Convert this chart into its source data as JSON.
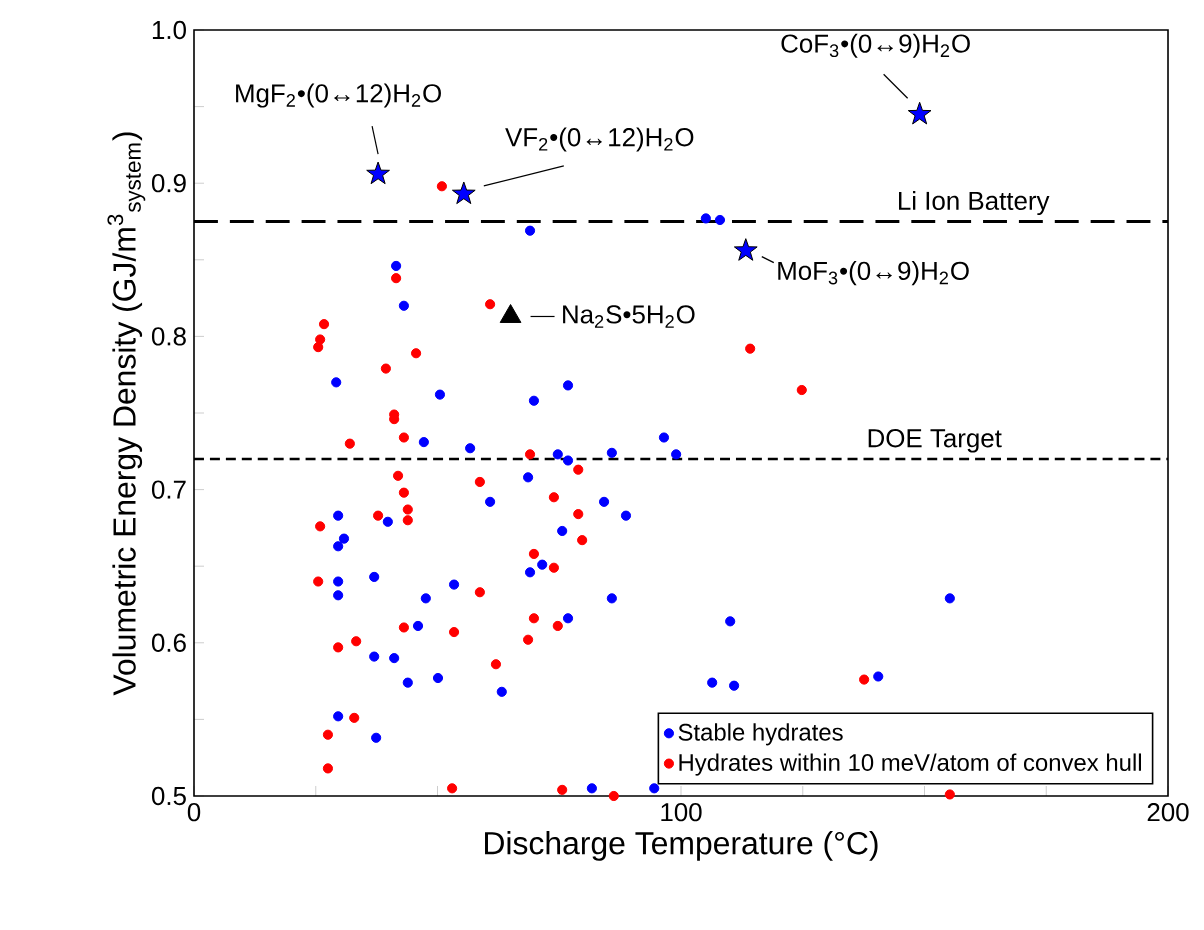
{
  "chart_data": {
    "type": "scatter",
    "xlabel": "Discharge Temperature (°C)",
    "ylabel": "Volumetric Energy Density (GJ/m$^{3}$$_{system}$)",
    "xlim": [
      0,
      200
    ],
    "xticks": [
      0,
      {
        "value": 25,
        "label": null
      },
      {
        "value": 50,
        "label": null
      },
      {
        "value": 75,
        "label": null
      },
      100,
      {
        "value": 125,
        "label": null
      },
      {
        "value": 150,
        "label": null
      },
      {
        "value": 175,
        "label": null
      },
      200
    ],
    "ylim": [
      0.5,
      1.0
    ],
    "yticks": [
      0.5,
      {
        "value": 0.55,
        "label": null
      },
      0.6,
      {
        "value": 0.65,
        "label": null
      },
      0.7,
      {
        "value": 0.75,
        "label": null
      },
      0.8,
      {
        "value": 0.85,
        "label": null
      },
      0.9,
      {
        "value": 0.95,
        "label": null
      },
      {
        "value": 1.0,
        "label": "1.0"
      }
    ],
    "legend": "bottom right",
    "series": [
      {
        "name": "Stable hydrates",
        "color": "#0000ff",
        "marker": "circle",
        "x": [
          69.0,
          41.5,
          43.1,
          29.2,
          50.5,
          69.8,
          76.8,
          47.2,
          56.7,
          96.5,
          99.0,
          74.7,
          76.8,
          68.6,
          84.2,
          60.8,
          29.6,
          39.8,
          88.7,
          30.8,
          29.6,
          75.6,
          71.5,
          69.0,
          29.6,
          29.6,
          37.0,
          53.4,
          47.6,
          85.8,
          76.8,
          46.0,
          37.0,
          41.1,
          43.9,
          50.1,
          63.2,
          29.6,
          37.4,
          81.7,
          94.5,
          105.1,
          108.0,
          85.8,
          110.1,
          155.2,
          106.4,
          110.9,
          140.5
        ],
        "values": [
          0.869,
          0.846,
          0.82,
          0.77,
          0.762,
          0.758,
          0.768,
          0.731,
          0.727,
          0.734,
          0.723,
          0.723,
          0.719,
          0.708,
          0.692,
          0.692,
          0.683,
          0.679,
          0.683,
          0.668,
          0.663,
          0.673,
          0.651,
          0.646,
          0.64,
          0.631,
          0.643,
          0.638,
          0.629,
          0.629,
          0.616,
          0.611,
          0.591,
          0.59,
          0.574,
          0.577,
          0.568,
          0.552,
          0.538,
          0.505,
          0.505,
          0.877,
          0.876,
          0.724,
          0.614,
          0.629,
          0.574,
          0.572,
          0.578
        ]
      },
      {
        "name": "Hydrates within 10 meV/atom of convex hull",
        "color": "#ff0000",
        "marker": "circle",
        "x": [
          50.9,
          41.5,
          60.8,
          26.7,
          25.9,
          25.5,
          45.6,
          39.4,
          41.1,
          41.1,
          43.1,
          32.0,
          69.0,
          78.9,
          41.9,
          43.1,
          58.7,
          73.9,
          43.9,
          43.9,
          37.8,
          25.9,
          78.9,
          79.7,
          69.8,
          73.9,
          25.5,
          58.7,
          43.1,
          53.4,
          69.8,
          74.7,
          68.6,
          33.3,
          29.6,
          62.0,
          32.9,
          27.5,
          27.5,
          53.0,
          75.6,
          86.2,
          114.2,
          124.8,
          137.6,
          155.2
        ],
        "values": [
          0.898,
          0.838,
          0.821,
          0.808,
          0.798,
          0.793,
          0.789,
          0.779,
          0.749,
          0.746,
          0.734,
          0.73,
          0.723,
          0.713,
          0.709,
          0.698,
          0.705,
          0.695,
          0.687,
          0.68,
          0.683,
          0.676,
          0.684,
          0.667,
          0.658,
          0.649,
          0.64,
          0.633,
          0.61,
          0.607,
          0.616,
          0.611,
          0.602,
          0.601,
          0.597,
          0.586,
          0.551,
          0.54,
          0.518,
          0.505,
          0.504,
          0.5,
          0.792,
          0.765,
          0.576,
          0.501
        ]
      },
      {
        "color": "#0000ff",
        "marker": "star",
        "x": [
          37.8,
          55.4,
          113.3,
          149.0
        ],
        "values": [
          0.906,
          0.893,
          0.856,
          0.945
        ]
      },
      {
        "color": "#000000",
        "marker": "triangle",
        "x": [
          65.0
        ],
        "values": [
          0.813
        ]
      }
    ],
    "ref_lines": [
      {
        "axis": "y",
        "value": 0.875,
        "label": "Li Ion Battery",
        "line_style": "dashed",
        "color": "#000000"
      },
      {
        "axis": "y",
        "value": 0.72,
        "label": "DOE Target",
        "line_style": "dashed",
        "color": "#000000"
      }
    ],
    "annotations": [
      {
        "text": "MgF$_{2}$•(0↔12)H$_{2}$O",
        "x": 37.8,
        "y": 0.906
      },
      {
        "text": "VF$_{2}$•(0↔12)H$_{2}$O",
        "x": 55.4,
        "y": 0.893
      },
      {
        "text": "MoF$_{3}$•(0↔9)H$_{2}$O",
        "x": 113.3,
        "y": 0.856
      },
      {
        "text": "CoF$_{3}$•(0↔9)H$_{2}$O",
        "x": 149.0,
        "y": 0.945
      },
      {
        "text": "Na$_{2}$S•5H$_{2}$O",
        "x": 65.0,
        "y": 0.813
      }
    ]
  }
}
